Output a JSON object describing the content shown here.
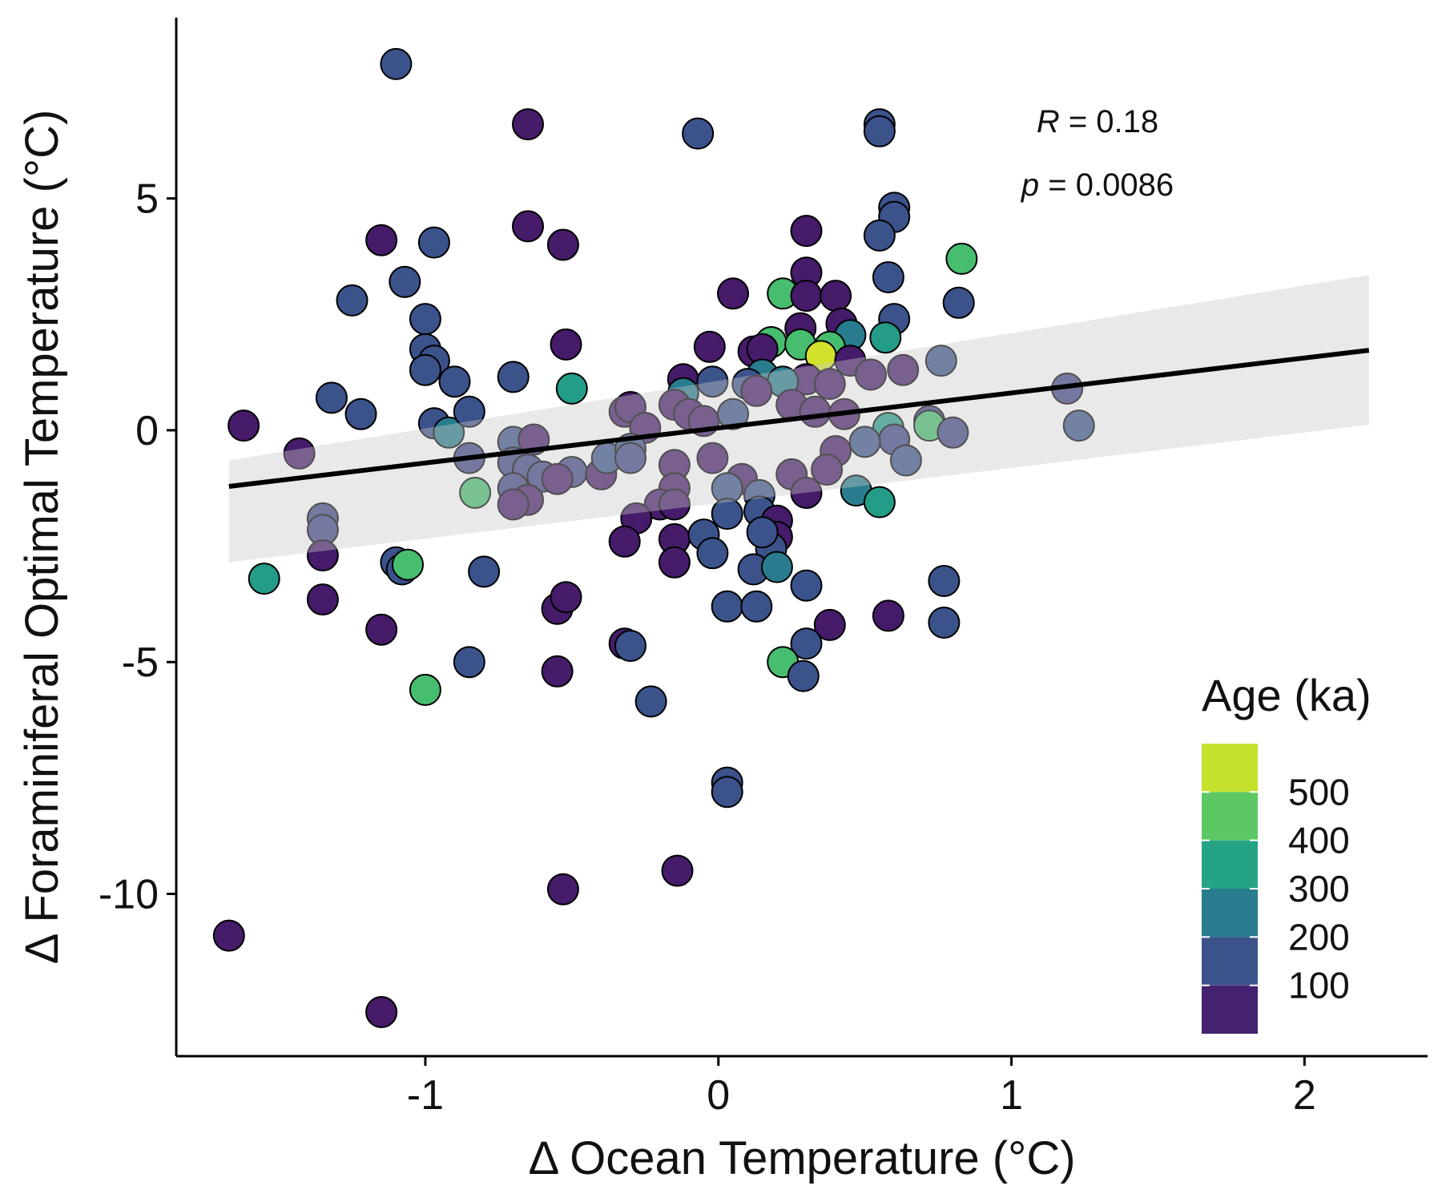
{
  "chart_data": {
    "type": "scatter",
    "xlabel": "Δ Ocean Temperature (°C)",
    "ylabel": "Δ Foraminiferal Optimal Temperature (°C)",
    "xlim": [
      -1.85,
      2.42
    ],
    "ylim": [
      -13.5,
      8.9
    ],
    "x_ticks": [
      -1,
      0,
      1,
      2
    ],
    "x_tick_labels": [
      "-1",
      "0",
      "1",
      "2"
    ],
    "y_ticks": [
      -10,
      -5,
      0,
      5
    ],
    "y_tick_labels": [
      "-10",
      "-5",
      "0",
      "5"
    ],
    "grid": false,
    "annotations": {
      "r_symbol": "R",
      "r_value": " = 0.18",
      "p_symbol": "p",
      "p_value": " = 0.0086"
    },
    "legend": {
      "title": "Age (ka)",
      "placement": "bottom-right",
      "scale": "viridis",
      "range": [
        0,
        600
      ],
      "breaks": [
        100,
        200,
        300,
        400,
        500
      ],
      "break_labels": [
        "100",
        "200",
        "300",
        "400",
        "500"
      ]
    },
    "regression": {
      "x_range": [
        -1.67,
        2.22
      ],
      "intercept": 0.05,
      "slope": 0.755,
      "ci_band": {
        "x": [
          -1.67,
          2.22
        ],
        "lower": [
          -2.85,
          0.12
        ],
        "upper": [
          -0.65,
          3.35
        ]
      }
    },
    "points": [
      {
        "x": -1.1,
        "y": 7.9,
        "age": 150
      },
      {
        "x": -0.65,
        "y": 6.6,
        "age": 40
      },
      {
        "x": -0.07,
        "y": 6.4,
        "age": 150
      },
      {
        "x": 0.55,
        "y": 6.6,
        "age": 150
      },
      {
        "x": 0.55,
        "y": 6.45,
        "age": 150
      },
      {
        "x": 0.6,
        "y": 4.8,
        "age": 150
      },
      {
        "x": 0.6,
        "y": 4.6,
        "age": 150
      },
      {
        "x": 0.55,
        "y": 4.2,
        "age": 150
      },
      {
        "x": 0.3,
        "y": 4.3,
        "age": 40
      },
      {
        "x": -1.15,
        "y": 4.1,
        "age": 40
      },
      {
        "x": -0.97,
        "y": 4.05,
        "age": 150
      },
      {
        "x": -0.65,
        "y": 4.4,
        "age": 40
      },
      {
        "x": -0.53,
        "y": 4.0,
        "age": 40
      },
      {
        "x": 0.83,
        "y": 3.7,
        "age": 420
      },
      {
        "x": 0.3,
        "y": 3.4,
        "age": 40
      },
      {
        "x": 0.58,
        "y": 3.3,
        "age": 150
      },
      {
        "x": -1.07,
        "y": 3.2,
        "age": 150
      },
      {
        "x": -1.25,
        "y": 2.8,
        "age": 150
      },
      {
        "x": 0.05,
        "y": 2.95,
        "age": 40
      },
      {
        "x": 0.22,
        "y": 2.95,
        "age": 420
      },
      {
        "x": 0.3,
        "y": 2.9,
        "age": 40
      },
      {
        "x": 0.4,
        "y": 2.9,
        "age": 40
      },
      {
        "x": 0.82,
        "y": 2.75,
        "age": 150
      },
      {
        "x": -1.0,
        "y": 2.4,
        "age": 150
      },
      {
        "x": 0.6,
        "y": 2.4,
        "age": 150
      },
      {
        "x": 0.42,
        "y": 2.3,
        "age": 40
      },
      {
        "x": 0.28,
        "y": 2.2,
        "age": 40
      },
      {
        "x": 0.45,
        "y": 2.05,
        "age": 250
      },
      {
        "x": 0.57,
        "y": 2.0,
        "age": 330
      },
      {
        "x": 0.18,
        "y": 1.9,
        "age": 420
      },
      {
        "x": 0.28,
        "y": 1.85,
        "age": 420
      },
      {
        "x": 0.38,
        "y": 1.8,
        "age": 420
      },
      {
        "x": -0.52,
        "y": 1.85,
        "age": 40
      },
      {
        "x": -0.03,
        "y": 1.8,
        "age": 40
      },
      {
        "x": 0.12,
        "y": 1.7,
        "age": 40
      },
      {
        "x": 0.15,
        "y": 1.75,
        "age": 40
      },
      {
        "x": 0.35,
        "y": 1.6,
        "age": 560
      },
      {
        "x": 0.45,
        "y": 1.5,
        "age": 40
      },
      {
        "x": -1.0,
        "y": 1.75,
        "age": 150
      },
      {
        "x": -0.97,
        "y": 1.5,
        "age": 150
      },
      {
        "x": -1.0,
        "y": 1.3,
        "age": 150
      },
      {
        "x": -0.9,
        "y": 1.05,
        "age": 150
      },
      {
        "x": -0.7,
        "y": 1.15,
        "age": 150
      },
      {
        "x": -0.5,
        "y": 0.9,
        "age": 330
      },
      {
        "x": 0.76,
        "y": 1.5,
        "age": 150
      },
      {
        "x": 0.63,
        "y": 1.3,
        "age": 40
      },
      {
        "x": 0.52,
        "y": 1.2,
        "age": 40
      },
      {
        "x": 0.3,
        "y": 1.1,
        "age": 40
      },
      {
        "x": 0.38,
        "y": 1.0,
        "age": 40
      },
      {
        "x": 0.15,
        "y": 1.2,
        "age": 250
      },
      {
        "x": 0.22,
        "y": 1.05,
        "age": 250
      },
      {
        "x": 0.1,
        "y": 1.0,
        "age": 150
      },
      {
        "x": 0.13,
        "y": 0.85,
        "age": 40
      },
      {
        "x": -0.12,
        "y": 1.1,
        "age": 40
      },
      {
        "x": -0.12,
        "y": 0.8,
        "age": 250
      },
      {
        "x": -0.02,
        "y": 1.05,
        "age": 150
      },
      {
        "x": -0.15,
        "y": 0.55,
        "age": 40
      },
      {
        "x": -0.1,
        "y": 0.35,
        "age": 40
      },
      {
        "x": -0.05,
        "y": 0.2,
        "age": 40
      },
      {
        "x": 0.05,
        "y": 0.35,
        "age": 150
      },
      {
        "x": 0.25,
        "y": 0.55,
        "age": 40
      },
      {
        "x": 0.33,
        "y": 0.4,
        "age": 40
      },
      {
        "x": 0.43,
        "y": 0.35,
        "age": 40
      },
      {
        "x": -1.32,
        "y": 0.7,
        "age": 150
      },
      {
        "x": -1.22,
        "y": 0.35,
        "age": 150
      },
      {
        "x": -0.97,
        "y": 0.15,
        "age": 150
      },
      {
        "x": -0.92,
        "y": -0.05,
        "age": 250
      },
      {
        "x": -0.85,
        "y": 0.4,
        "age": 150
      },
      {
        "x": -0.32,
        "y": 0.4,
        "age": 40
      },
      {
        "x": -0.3,
        "y": 0.5,
        "age": 40
      },
      {
        "x": -0.25,
        "y": 0.05,
        "age": 40
      },
      {
        "x": -1.62,
        "y": 0.1,
        "age": 40
      },
      {
        "x": -1.43,
        "y": -0.5,
        "age": 40
      },
      {
        "x": -0.85,
        "y": -0.6,
        "age": 120
      },
      {
        "x": -0.7,
        "y": -0.25,
        "age": 150
      },
      {
        "x": -0.63,
        "y": -0.2,
        "age": 40
      },
      {
        "x": 0.58,
        "y": 0.05,
        "age": 330
      },
      {
        "x": 0.72,
        "y": 0.2,
        "age": 120
      },
      {
        "x": 0.72,
        "y": 0.1,
        "age": 420
      },
      {
        "x": 0.8,
        "y": -0.05,
        "age": 120
      },
      {
        "x": 0.6,
        "y": -0.2,
        "age": 120
      },
      {
        "x": 0.5,
        "y": -0.25,
        "age": 150
      },
      {
        "x": 0.4,
        "y": -0.45,
        "age": 40
      },
      {
        "x": 0.64,
        "y": -0.65,
        "age": 150
      },
      {
        "x": 1.19,
        "y": 0.9,
        "age": 120
      },
      {
        "x": 1.23,
        "y": 0.1,
        "age": 150
      },
      {
        "x": -0.83,
        "y": -1.35,
        "age": 420
      },
      {
        "x": -0.7,
        "y": -0.7,
        "age": 120
      },
      {
        "x": -0.65,
        "y": -0.85,
        "age": 120
      },
      {
        "x": -0.6,
        "y": -1.0,
        "age": 120
      },
      {
        "x": -0.5,
        "y": -0.9,
        "age": 120
      },
      {
        "x": -0.55,
        "y": -1.05,
        "age": 40
      },
      {
        "x": -0.4,
        "y": -0.95,
        "age": 40
      },
      {
        "x": -0.38,
        "y": -0.6,
        "age": 150
      },
      {
        "x": -0.3,
        "y": -0.4,
        "age": 150
      },
      {
        "x": -0.3,
        "y": -0.6,
        "age": 120
      },
      {
        "x": -0.7,
        "y": -1.25,
        "age": 120
      },
      {
        "x": -0.65,
        "y": -1.5,
        "age": 40
      },
      {
        "x": -0.7,
        "y": -1.6,
        "age": 40
      },
      {
        "x": -0.15,
        "y": -0.75,
        "age": 40
      },
      {
        "x": -0.15,
        "y": -1.25,
        "age": 40
      },
      {
        "x": -0.2,
        "y": -1.6,
        "age": 40
      },
      {
        "x": -0.15,
        "y": -1.6,
        "age": 40
      },
      {
        "x": -0.02,
        "y": -0.6,
        "age": 40
      },
      {
        "x": 0.08,
        "y": -1.05,
        "age": 40
      },
      {
        "x": 0.03,
        "y": -1.25,
        "age": 150
      },
      {
        "x": 0.14,
        "y": -1.4,
        "age": 150
      },
      {
        "x": 0.03,
        "y": -1.8,
        "age": 150
      },
      {
        "x": 0.14,
        "y": -1.75,
        "age": 150
      },
      {
        "x": 0.2,
        "y": -1.95,
        "age": 40
      },
      {
        "x": 0.2,
        "y": -2.3,
        "age": 40
      },
      {
        "x": 0.18,
        "y": -2.55,
        "age": 150
      },
      {
        "x": 0.25,
        "y": -0.95,
        "age": 40
      },
      {
        "x": 0.3,
        "y": -1.35,
        "age": 40
      },
      {
        "x": 0.37,
        "y": -0.85,
        "age": 40
      },
      {
        "x": 0.47,
        "y": -1.3,
        "age": 250
      },
      {
        "x": 0.55,
        "y": -1.55,
        "age": 330
      },
      {
        "x": -0.28,
        "y": -1.9,
        "age": 40
      },
      {
        "x": -0.32,
        "y": -2.4,
        "age": 40
      },
      {
        "x": -0.15,
        "y": -2.35,
        "age": 40
      },
      {
        "x": -0.15,
        "y": -2.85,
        "age": 40
      },
      {
        "x": -0.05,
        "y": -2.25,
        "age": 150
      },
      {
        "x": -0.02,
        "y": -2.65,
        "age": 150
      },
      {
        "x": 0.15,
        "y": -2.2,
        "age": 150
      },
      {
        "x": 0.12,
        "y": -3.0,
        "age": 150
      },
      {
        "x": 0.2,
        "y": -2.95,
        "age": 250
      },
      {
        "x": 0.3,
        "y": -3.35,
        "age": 150
      },
      {
        "x": -1.35,
        "y": -1.9,
        "age": 120
      },
      {
        "x": -1.35,
        "y": -2.15,
        "age": 120
      },
      {
        "x": -1.35,
        "y": -2.7,
        "age": 40
      },
      {
        "x": -1.55,
        "y": -3.2,
        "age": 330
      },
      {
        "x": -1.1,
        "y": -2.85,
        "age": 150
      },
      {
        "x": -1.08,
        "y": -3.0,
        "age": 150
      },
      {
        "x": -1.06,
        "y": -2.9,
        "age": 420
      },
      {
        "x": -0.8,
        "y": -3.05,
        "age": 150
      },
      {
        "x": -1.35,
        "y": -3.65,
        "age": 40
      },
      {
        "x": -1.15,
        "y": -4.3,
        "age": 40
      },
      {
        "x": -0.55,
        "y": -3.85,
        "age": 40
      },
      {
        "x": -0.52,
        "y": -3.6,
        "age": 40
      },
      {
        "x": 0.03,
        "y": -3.8,
        "age": 150
      },
      {
        "x": 0.13,
        "y": -3.8,
        "age": 150
      },
      {
        "x": 0.38,
        "y": -4.2,
        "age": 40
      },
      {
        "x": 0.58,
        "y": -4.0,
        "age": 40
      },
      {
        "x": 0.77,
        "y": -3.25,
        "age": 150
      },
      {
        "x": 0.77,
        "y": -4.15,
        "age": 150
      },
      {
        "x": -0.32,
        "y": -4.6,
        "age": 40
      },
      {
        "x": -0.3,
        "y": -4.65,
        "age": 150
      },
      {
        "x": 0.3,
        "y": -4.6,
        "age": 150
      },
      {
        "x": -0.85,
        "y": -5.0,
        "age": 150
      },
      {
        "x": -0.55,
        "y": -5.2,
        "age": 40
      },
      {
        "x": -1.0,
        "y": -5.6,
        "age": 420
      },
      {
        "x": 0.22,
        "y": -5.0,
        "age": 420
      },
      {
        "x": 0.29,
        "y": -5.3,
        "age": 150
      },
      {
        "x": -0.23,
        "y": -5.85,
        "age": 150
      },
      {
        "x": 0.03,
        "y": -7.6,
        "age": 150
      },
      {
        "x": 0.03,
        "y": -7.8,
        "age": 150
      },
      {
        "x": -0.53,
        "y": -9.9,
        "age": 40
      },
      {
        "x": -0.14,
        "y": -9.5,
        "age": 40
      },
      {
        "x": -1.67,
        "y": -10.9,
        "age": 40
      },
      {
        "x": -1.15,
        "y": -12.55,
        "age": 40
      }
    ]
  }
}
